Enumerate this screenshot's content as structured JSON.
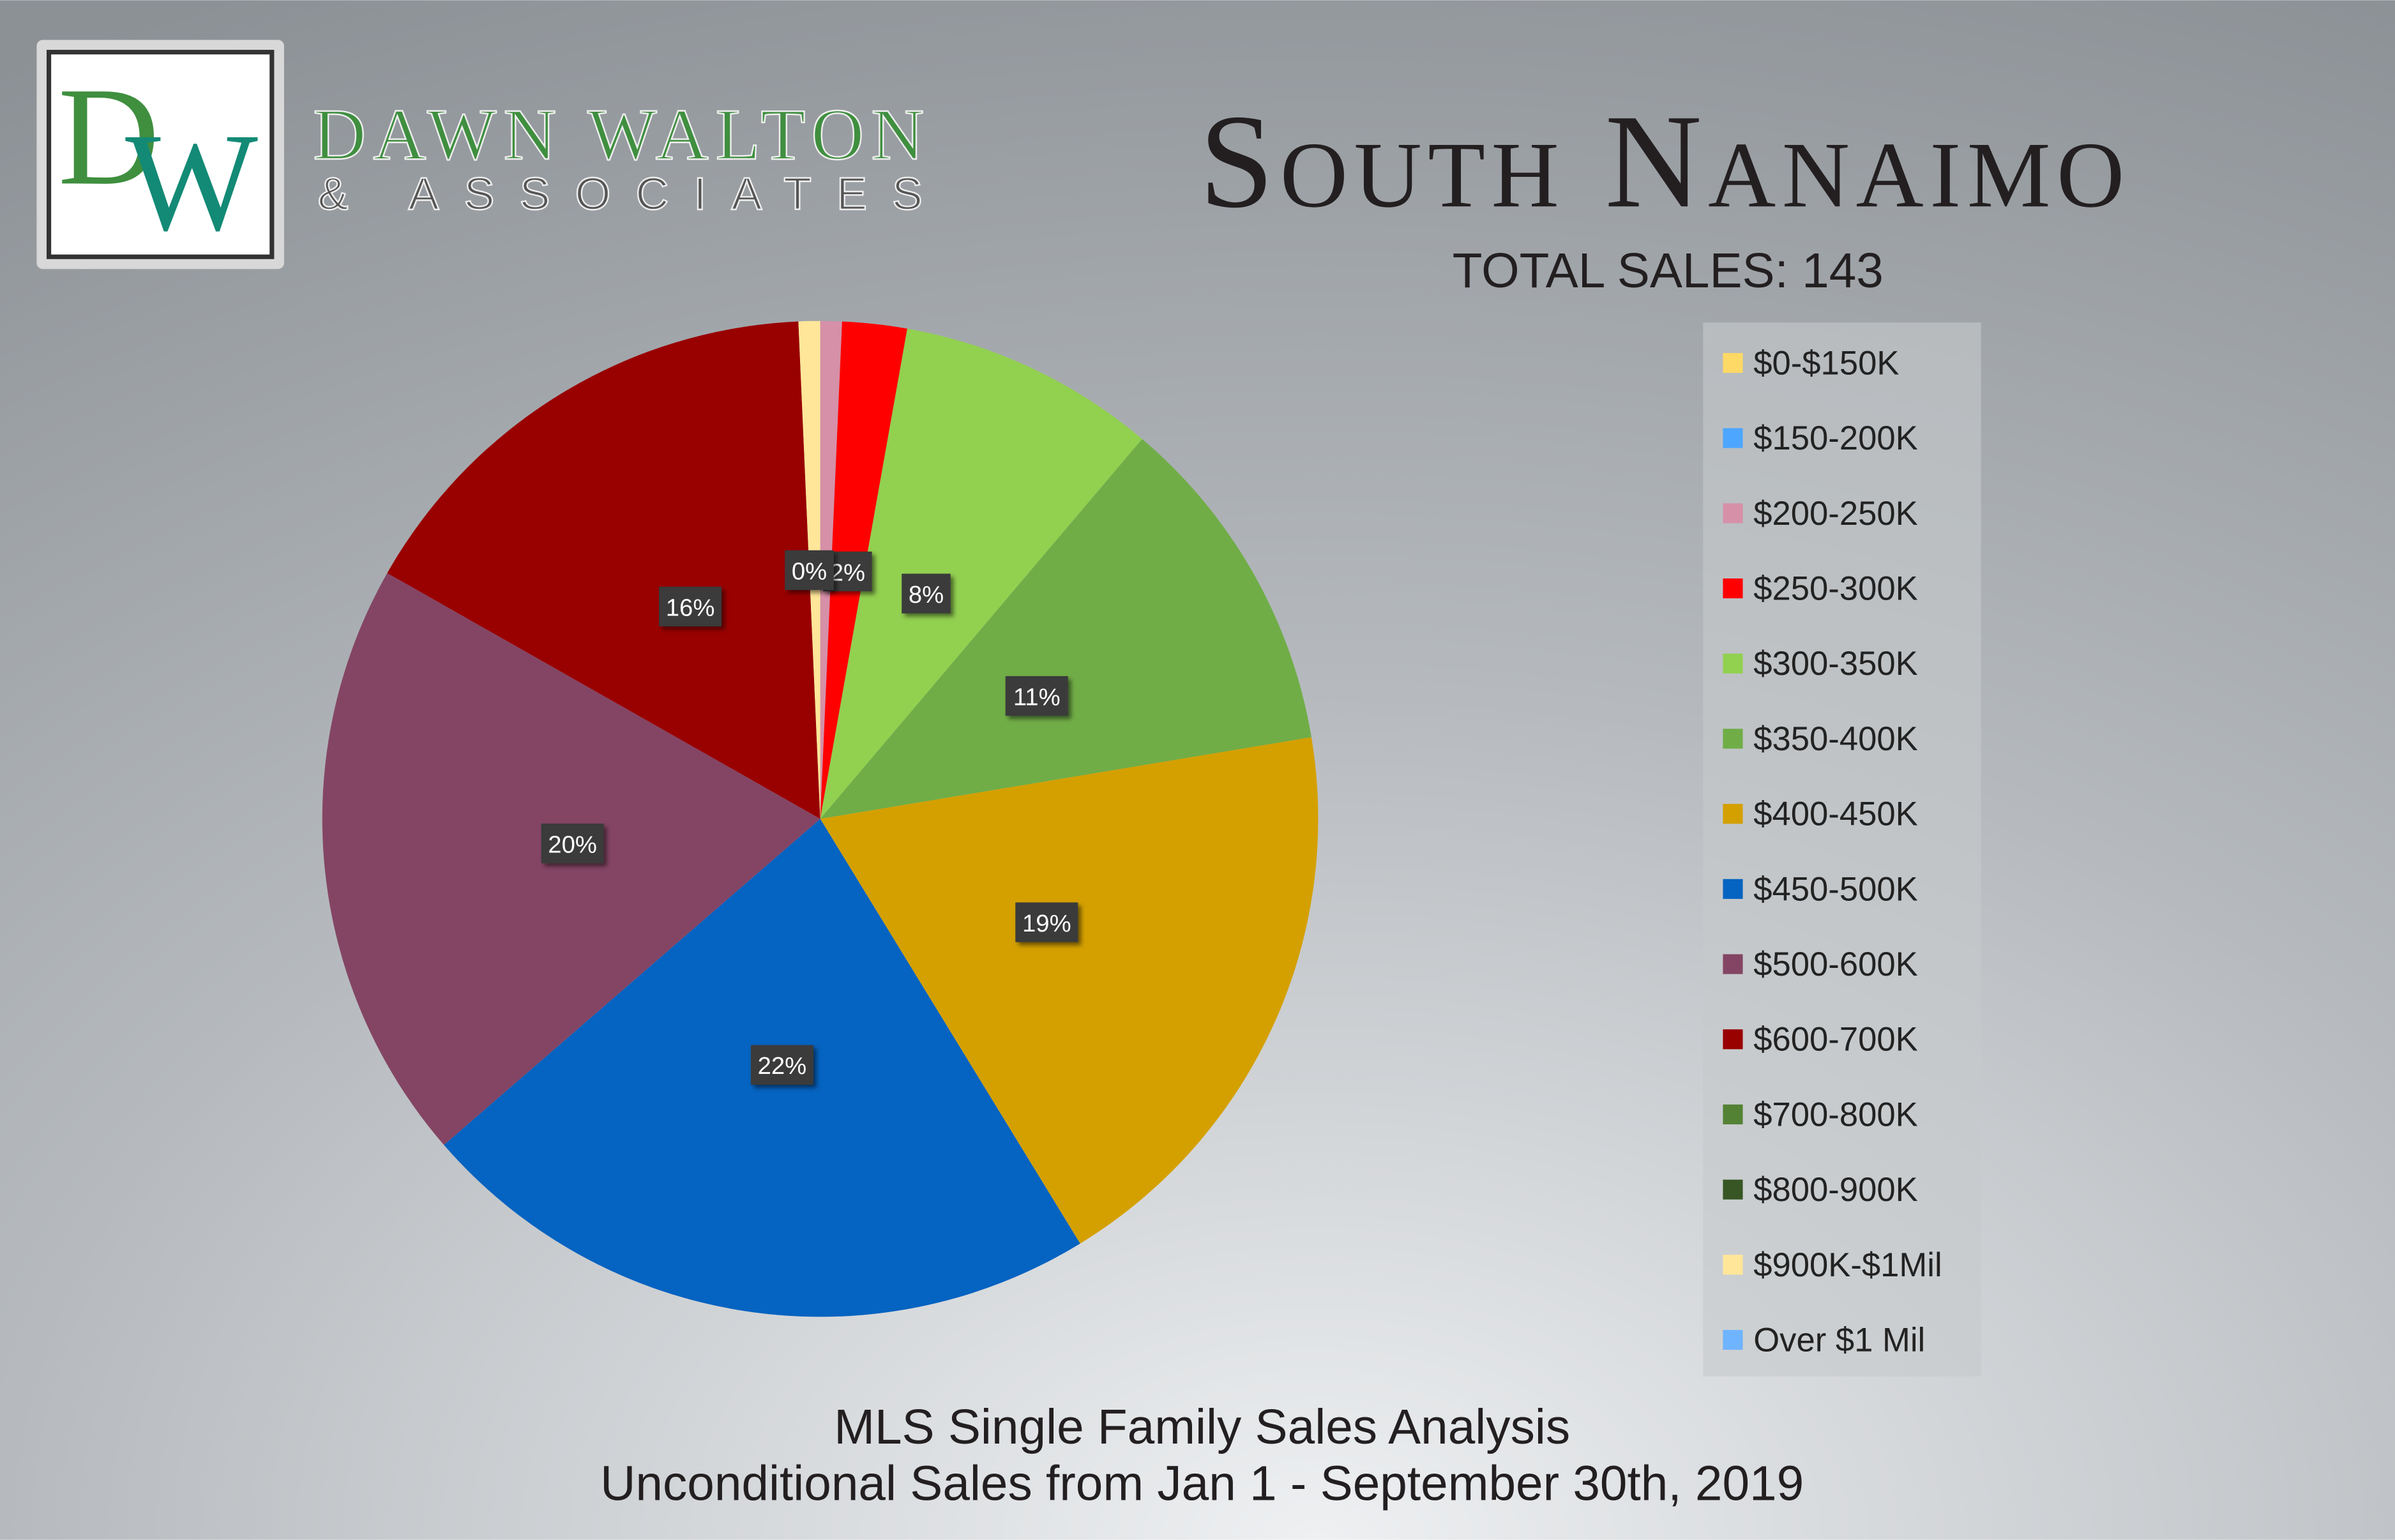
{
  "logo": {
    "letters": [
      "D",
      "W"
    ],
    "name": "DAWN WALTON",
    "tagline": "& ASSOCIATES"
  },
  "chart_data": {
    "type": "pie",
    "title": "South Nanaimo",
    "subtitle": "TOTAL SALES: 143",
    "footer": [
      "MLS Single Family Sales Analysis",
      "Unconditional Sales from Jan 1 - September 30th, 2019"
    ],
    "categories": [
      "$0-$150K",
      "$150-200K",
      "$200-250K",
      "$250-300K",
      "$300-350K",
      "$350-400K",
      "$400-450K",
      "$450-500K",
      "$500-600K",
      "$600-700K",
      "$700-800K",
      "$800-900K",
      "$900K-$1Mil",
      "Over $1 Mil"
    ],
    "values": [
      0,
      0,
      0.7,
      2.1,
      8.4,
      11.2,
      18.9,
      22.4,
      19.6,
      16.1,
      0,
      0,
      0.7,
      0
    ],
    "value_labels": [
      null,
      null,
      null,
      "2%",
      "8%",
      "11%",
      "19%",
      "22%",
      "20%",
      "16%",
      "0%",
      null,
      null,
      null
    ],
    "colors": [
      "#ffd966",
      "#4da6ff",
      "#d690a8",
      "#ff0000",
      "#92d050",
      "#70ad47",
      "#d4a000",
      "#0563c1",
      "#844564",
      "#990000",
      "#548235",
      "#375623",
      "#ffe699",
      "#6fb4ff"
    ],
    "legend": "right"
  }
}
